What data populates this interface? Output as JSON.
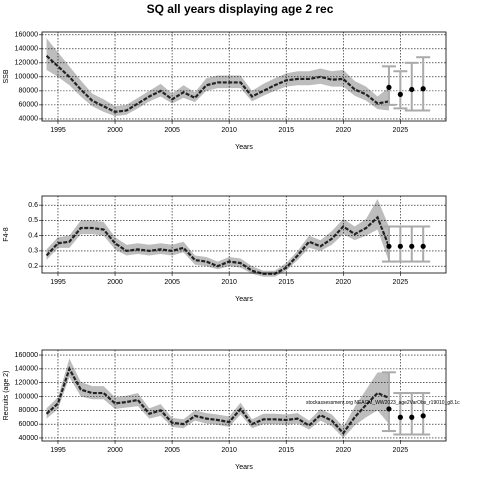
{
  "chart_data": [
    {
      "type": "line",
      "title": "SQ all years displaying age 2 rec",
      "xlabel": "Years",
      "ylabel": "SSB",
      "x": [
        1994,
        1995,
        1996,
        1997,
        1998,
        1999,
        2000,
        2001,
        2002,
        2003,
        2004,
        2005,
        2006,
        2007,
        2008,
        2009,
        2010,
        2011,
        2012,
        2013,
        2014,
        2015,
        2016,
        2017,
        2018,
        2019,
        2020,
        2021,
        2022,
        2023,
        2024
      ],
      "values": [
        130000,
        115000,
        100000,
        82000,
        66000,
        58000,
        50000,
        52000,
        62000,
        72000,
        80000,
        68000,
        78000,
        70000,
        88000,
        92000,
        92000,
        92000,
        72000,
        80000,
        88000,
        95000,
        97000,
        97000,
        100000,
        96000,
        97000,
        82000,
        75000,
        62000,
        65000
      ],
      "lower": [
        110000,
        100000,
        88000,
        72000,
        58000,
        50000,
        44000,
        46000,
        55000,
        65000,
        72000,
        62000,
        70000,
        64000,
        80000,
        84000,
        84000,
        84000,
        65000,
        73000,
        80000,
        86000,
        88000,
        88000,
        90000,
        86000,
        86000,
        73000,
        66000,
        54000,
        52000
      ],
      "upper": [
        155000,
        135000,
        115000,
        95000,
        76000,
        68000,
        58000,
        60000,
        70000,
        80000,
        90000,
        76000,
        88000,
        78000,
        98000,
        102000,
        102000,
        102000,
        80000,
        90000,
        98000,
        105000,
        108000,
        108000,
        112000,
        108000,
        110000,
        94000,
        86000,
        72000,
        85000
      ],
      "proj_x": [
        2024,
        2025,
        2026,
        2027
      ],
      "proj_values": [
        85000,
        75000,
        82000,
        83000
      ],
      "proj_lower": [
        60000,
        55000,
        52000,
        52000
      ],
      "proj_upper": [
        115000,
        108000,
        120000,
        128000
      ],
      "xlim": [
        1993.6,
        2029
      ],
      "xticks": [
        1995,
        2000,
        2005,
        2010,
        2015,
        2020,
        2025
      ],
      "ylim": [
        37000,
        164000
      ],
      "yticks": [
        40000,
        60000,
        80000,
        100000,
        120000,
        140000,
        160000
      ],
      "grid": true,
      "line_color": "#222222",
      "band_color": "#bdbdbd",
      "error_color": "#aaaaaa",
      "point_color": "#000000"
    },
    {
      "type": "line",
      "xlabel": "Years",
      "ylabel": "F4-8",
      "x": [
        1994,
        1995,
        1996,
        1997,
        1998,
        1999,
        2000,
        2001,
        2002,
        2003,
        2004,
        2005,
        2006,
        2007,
        2008,
        2009,
        2010,
        2011,
        2012,
        2013,
        2014,
        2015,
        2016,
        2017,
        2018,
        2019,
        2020,
        2021,
        2022,
        2023,
        2024
      ],
      "values": [
        0.27,
        0.35,
        0.36,
        0.45,
        0.45,
        0.44,
        0.35,
        0.3,
        0.31,
        0.3,
        0.31,
        0.3,
        0.32,
        0.24,
        0.23,
        0.2,
        0.23,
        0.22,
        0.17,
        0.15,
        0.15,
        0.19,
        0.27,
        0.36,
        0.33,
        0.38,
        0.46,
        0.41,
        0.45,
        0.52,
        0.33
      ],
      "lower": [
        0.24,
        0.32,
        0.32,
        0.41,
        0.41,
        0.4,
        0.31,
        0.27,
        0.28,
        0.27,
        0.28,
        0.27,
        0.29,
        0.21,
        0.2,
        0.18,
        0.2,
        0.19,
        0.15,
        0.13,
        0.13,
        0.17,
        0.24,
        0.32,
        0.3,
        0.34,
        0.41,
        0.37,
        0.4,
        0.44,
        0.23
      ],
      "upper": [
        0.31,
        0.39,
        0.4,
        0.5,
        0.5,
        0.49,
        0.39,
        0.34,
        0.35,
        0.34,
        0.35,
        0.34,
        0.36,
        0.27,
        0.26,
        0.23,
        0.26,
        0.25,
        0.2,
        0.17,
        0.17,
        0.22,
        0.3,
        0.4,
        0.37,
        0.43,
        0.51,
        0.46,
        0.51,
        0.64,
        0.46
      ],
      "proj_x": [
        2024,
        2025,
        2026,
        2027
      ],
      "proj_values": [
        0.33,
        0.33,
        0.33,
        0.33
      ],
      "proj_lower": [
        0.23,
        0.23,
        0.23,
        0.23
      ],
      "proj_upper": [
        0.46,
        0.46,
        0.46,
        0.46
      ],
      "xlim": [
        1993.6,
        2029
      ],
      "xticks": [
        1995,
        2000,
        2005,
        2010,
        2015,
        2020,
        2025
      ],
      "ylim": [
        0.155,
        0.66
      ],
      "yticks": [
        0.2,
        0.3,
        0.4,
        0.5,
        0.6
      ],
      "grid": true,
      "line_color": "#222222",
      "band_color": "#bdbdbd",
      "error_color": "#aaaaaa",
      "point_color": "#000000"
    },
    {
      "type": "line",
      "xlabel": "Years",
      "ylabel": "Recruits (age 2)",
      "annotation": "stockassessment.org NEACM_WW2023_age2VarObs_r19010_g8.1c",
      "x": [
        1994,
        1995,
        1996,
        1997,
        1998,
        1999,
        2000,
        2001,
        2002,
        2003,
        2004,
        2005,
        2006,
        2007,
        2008,
        2009,
        2010,
        2011,
        2012,
        2013,
        2014,
        2015,
        2016,
        2017,
        2018,
        2019,
        2020,
        2021,
        2022,
        2023,
        2024
      ],
      "values": [
        75000,
        90000,
        140000,
        110000,
        105000,
        105000,
        90000,
        92000,
        95000,
        75000,
        80000,
        62000,
        60000,
        72000,
        68000,
        66000,
        63000,
        82000,
        60000,
        67000,
        67000,
        66000,
        68000,
        58000,
        73000,
        65000,
        47000,
        70000,
        88000,
        105000,
        98000
      ],
      "lower": [
        68000,
        82000,
        128000,
        100000,
        96000,
        96000,
        82000,
        84000,
        86000,
        68000,
        72000,
        56000,
        54000,
        65000,
        61000,
        59000,
        56000,
        74000,
        54000,
        60000,
        60000,
        59000,
        61000,
        52000,
        65000,
        57000,
        40000,
        58000,
        70000,
        80000,
        60000
      ],
      "upper": [
        83000,
        99000,
        155000,
        121000,
        115000,
        115000,
        99000,
        101000,
        105000,
        83000,
        89000,
        69000,
        67000,
        80000,
        76000,
        74000,
        71000,
        91000,
        67000,
        75000,
        75000,
        74000,
        76000,
        65000,
        82000,
        74000,
        56000,
        85000,
        110000,
        135000,
        135000
      ],
      "proj_x": [
        2024,
        2025,
        2026,
        2027
      ],
      "proj_values": [
        82000,
        70000,
        70000,
        72000
      ],
      "proj_lower": [
        50000,
        45000,
        45000,
        45000
      ],
      "proj_upper": [
        135000,
        105000,
        105000,
        105000
      ],
      "xlim": [
        1993.6,
        2029
      ],
      "xticks": [
        1995,
        2000,
        2005,
        2010,
        2015,
        2020,
        2025
      ],
      "ylim": [
        35600,
        167300
      ],
      "yticks": [
        40000,
        60000,
        80000,
        100000,
        120000,
        140000,
        160000
      ],
      "grid": true,
      "line_color": "#222222",
      "band_color": "#bdbdbd",
      "error_color": "#aaaaaa",
      "point_color": "#000000"
    }
  ]
}
